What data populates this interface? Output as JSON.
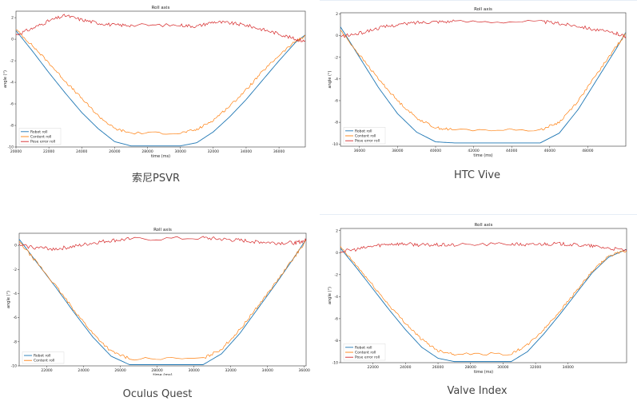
{
  "captions": [
    "索尼PSVR",
    "HTC Vive",
    "Oculus Quest",
    "Valve Index"
  ],
  "colors": {
    "robot": "#1f77b4",
    "content": "#ff7f0e",
    "pose_error": "#d62728"
  },
  "chart_data": [
    {
      "type": "line",
      "title": "Roll axis",
      "xlabel": "time (ms)",
      "ylabel": "angle (°)",
      "xlim": [
        20000,
        37600
      ],
      "ylim": [
        -10,
        2.6
      ],
      "xticks": [
        20000,
        22000,
        24000,
        26000,
        28000,
        30000,
        32000,
        34000,
        36000
      ],
      "xtick_labels": [
        "20000",
        "22000",
        "24000",
        "26000",
        "28000",
        "30000",
        "32000",
        "34000",
        "36000"
      ],
      "yticks": [
        -10,
        -8,
        -6,
        -4,
        -2,
        0,
        2
      ],
      "ytick_labels": [
        "-10",
        "-8",
        "-6",
        "-4",
        "-2",
        "0",
        "2"
      ],
      "legend": "lower-left",
      "series": [
        {
          "name": "Robot roll",
          "x": [
            20000,
            21000,
            22000,
            23000,
            24000,
            25000,
            26000,
            27000,
            30000,
            31000,
            32000,
            33000,
            34000,
            35000,
            36000,
            37000,
            37600
          ],
          "y": [
            0.8,
            -1.1,
            -3.1,
            -5.0,
            -6.8,
            -8.3,
            -9.5,
            -9.9,
            -9.9,
            -9.6,
            -8.6,
            -7.2,
            -5.6,
            -3.8,
            -2.0,
            -0.3,
            0.4
          ]
        },
        {
          "name": "Content roll",
          "x": [
            20000,
            21000,
            22000,
            23000,
            24000,
            25000,
            26000,
            27000,
            30000,
            31000,
            32000,
            33000,
            34000,
            35000,
            36000,
            37000,
            37600
          ],
          "y": [
            0.9,
            -0.6,
            -2.2,
            -3.9,
            -5.5,
            -7.1,
            -8.3,
            -8.7,
            -8.7,
            -8.4,
            -7.5,
            -6.2,
            -4.7,
            -3.0,
            -1.5,
            -0.2,
            0.3
          ]
        },
        {
          "name": "Pose error roll",
          "x": [
            20000,
            21000,
            22000,
            23000,
            24000,
            25000,
            26000,
            27000,
            30000,
            31000,
            32000,
            33000,
            34000,
            35000,
            36000,
            37000,
            37600
          ],
          "y": [
            0.4,
            1.0,
            1.7,
            2.2,
            1.8,
            1.5,
            1.3,
            1.3,
            1.3,
            1.2,
            1.6,
            1.5,
            1.3,
            0.9,
            0.5,
            0.0,
            -0.2
          ]
        }
      ]
    },
    {
      "type": "line",
      "title": "Roll axis",
      "xlabel": "time (ms)",
      "ylabel": "angle (°)",
      "xlim": [
        35000,
        50000
      ],
      "ylim": [
        -10.2,
        2.1
      ],
      "xticks": [
        36000,
        38000,
        40000,
        42000,
        44000,
        46000,
        48000
      ],
      "xtick_labels": [
        "36000",
        "38000",
        "40000",
        "42000",
        "44000",
        "46000",
        "48000"
      ],
      "yticks": [
        -10,
        -8,
        -6,
        -4,
        -2,
        0,
        2
      ],
      "ytick_labels": [
        "-10",
        "-8",
        "-6",
        "-4",
        "-2",
        "0",
        "2"
      ],
      "legend": "lower-left",
      "series": [
        {
          "name": "Robot roll",
          "x": [
            35000,
            36000,
            37000,
            38000,
            39000,
            40000,
            41000,
            45500,
            46500,
            47500,
            48500,
            49500,
            50000
          ],
          "y": [
            0.8,
            -2.0,
            -4.8,
            -7.2,
            -8.9,
            -9.8,
            -9.9,
            -9.9,
            -9.0,
            -6.8,
            -4.0,
            -1.2,
            0.3
          ]
        },
        {
          "name": "Content roll",
          "x": [
            35000,
            36000,
            37000,
            38000,
            39000,
            40000,
            41000,
            45500,
            46500,
            47500,
            48500,
            49500,
            50000
          ],
          "y": [
            0.5,
            -1.8,
            -4.0,
            -6.0,
            -7.6,
            -8.5,
            -8.7,
            -8.7,
            -8.0,
            -6.0,
            -3.5,
            -1.0,
            0.2
          ]
        },
        {
          "name": "Pose error roll",
          "x": [
            35000,
            36000,
            37000,
            38000,
            39000,
            40000,
            41000,
            45500,
            46500,
            47500,
            48500,
            49500,
            50000
          ],
          "y": [
            -0.1,
            0.2,
            0.7,
            1.0,
            1.2,
            1.3,
            1.3,
            1.3,
            1.1,
            0.9,
            0.5,
            0.2,
            -0.1
          ]
        }
      ]
    },
    {
      "type": "line",
      "title": "Roll axis",
      "xlabel": "time (ms)",
      "ylabel": "angle (°)",
      "xlim": [
        20500,
        36100
      ],
      "ylim": [
        -10,
        1.0
      ],
      "xticks": [
        22000,
        24000,
        26000,
        28000,
        30000,
        32000,
        34000,
        36000
      ],
      "xtick_labels": [
        "22000",
        "24000",
        "26000",
        "28000",
        "30000",
        "32000",
        "34000",
        "36000"
      ],
      "yticks": [
        -10,
        -8,
        -6,
        -4,
        -2,
        0
      ],
      "ytick_labels": [
        "-10",
        "-8",
        "-6",
        "-4",
        "-2",
        "0"
      ],
      "legend": "lower-left",
      "series": [
        {
          "name": "Robot roll",
          "x": [
            20500,
            21500,
            22500,
            23500,
            24500,
            25500,
            26500,
            30500,
            31500,
            32500,
            33500,
            34500,
            35500,
            36100
          ],
          "y": [
            0.5,
            -1.5,
            -3.5,
            -5.6,
            -7.6,
            -9.2,
            -9.9,
            -9.9,
            -9.0,
            -7.3,
            -5.2,
            -3.1,
            -0.9,
            0.5
          ]
        },
        {
          "name": "Content roll",
          "x": [
            20500,
            21500,
            22500,
            23500,
            24500,
            25500,
            26500,
            30500,
            31500,
            32500,
            33500,
            34500,
            35500,
            36100
          ],
          "y": [
            0.3,
            -1.5,
            -3.4,
            -5.4,
            -7.3,
            -8.8,
            -9.4,
            -9.4,
            -8.6,
            -7.0,
            -5.0,
            -3.0,
            -0.9,
            0.4
          ]
        },
        {
          "name": "",
          "x": [
            20500,
            21500,
            22500,
            23500,
            24500,
            25500,
            26500,
            30500,
            31500,
            32500,
            33500,
            34500,
            35500,
            36100
          ],
          "y": [
            0.0,
            -0.2,
            -0.3,
            -0.1,
            0.2,
            0.4,
            0.5,
            0.6,
            0.5,
            0.4,
            0.3,
            0.2,
            0.2,
            0.4
          ]
        }
      ]
    },
    {
      "type": "line",
      "title": "Roll axis",
      "xlabel": "time (ms)",
      "ylabel": "angle (°)",
      "xlim": [
        20000,
        37600
      ],
      "ylim": [
        -10,
        2.2
      ],
      "xticks": [
        22000,
        24000,
        26000,
        28000,
        30000,
        32000,
        34000
      ],
      "xtick_labels": [
        "22000",
        "24000",
        "26000",
        "28000",
        "30000",
        "32000",
        "34000"
      ],
      "yticks": [
        -10,
        -8,
        -6,
        -4,
        -2,
        0,
        2
      ],
      "ytick_labels": [
        "-10",
        "-8",
        "-6",
        "-4",
        "-2",
        "0",
        "2"
      ],
      "legend": "lower-left",
      "series": [
        {
          "name": "Robot roll",
          "x": [
            20000,
            21000,
            22000,
            23000,
            24000,
            25000,
            26000,
            27000,
            30500,
            31500,
            32500,
            33500,
            34500,
            35500,
            36500,
            37600
          ],
          "y": [
            0.4,
            -1.4,
            -3.3,
            -5.2,
            -7.0,
            -8.6,
            -9.6,
            -9.9,
            -9.9,
            -9.0,
            -7.4,
            -5.6,
            -3.7,
            -1.8,
            -0.4,
            0.3
          ]
        },
        {
          "name": "Content roll",
          "x": [
            20000,
            21000,
            22000,
            23000,
            24000,
            25000,
            26000,
            27000,
            30500,
            31500,
            32500,
            33500,
            34500,
            35500,
            36500,
            37600
          ],
          "y": [
            0.5,
            -1.2,
            -3.0,
            -4.8,
            -6.4,
            -7.9,
            -8.9,
            -9.2,
            -9.2,
            -8.4,
            -7.0,
            -5.3,
            -3.5,
            -1.7,
            -0.3,
            0.2
          ]
        },
        {
          "name": "Pose error roll",
          "x": [
            20000,
            21000,
            22000,
            23000,
            24000,
            25000,
            26000,
            27000,
            30500,
            31500,
            32500,
            33500,
            34500,
            35500,
            36500,
            37600
          ],
          "y": [
            0.1,
            0.3,
            0.6,
            0.8,
            0.8,
            0.7,
            0.7,
            0.7,
            0.8,
            0.7,
            0.8,
            0.8,
            0.7,
            0.6,
            0.4,
            0.2
          ]
        }
      ]
    }
  ]
}
